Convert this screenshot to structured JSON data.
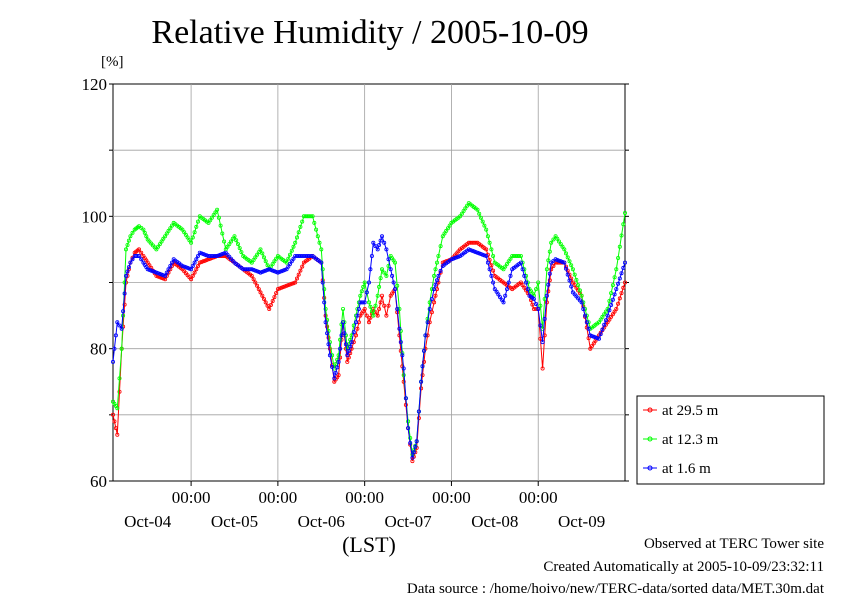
{
  "page": {
    "title": "Relative Humidity / 2005-10-09",
    "unit_label": "[%]",
    "footer": {
      "line1": "Observed at TERC Tower site",
      "line2": "Created Automatically at 2005-10-09/23:32:11",
      "line3": "Data source : /home/hoivo/new/TERC-data/sorted  data/MET.30m.dat"
    }
  },
  "chart_data": {
    "type": "line",
    "title": "Relative Humidity / 2005-10-09",
    "ylabel": "[%]",
    "xlabel": "(LST)",
    "ylim": [
      60,
      120
    ],
    "yticks": [
      60,
      80,
      100,
      120
    ],
    "xlim": [
      -0.9,
      5.0
    ],
    "time_tick_label": "00:00",
    "day_labels": [
      "Oct-04",
      "Oct-05",
      "Oct-06",
      "Oct-07",
      "Oct-08",
      "Oct-09"
    ],
    "grid": true,
    "legend": "right",
    "x": [
      -0.9,
      -0.85,
      -0.8,
      -0.75,
      -0.7,
      -0.65,
      -0.6,
      -0.55,
      -0.5,
      -0.4,
      -0.3,
      -0.2,
      -0.1,
      0.0,
      0.1,
      0.2,
      0.3,
      0.4,
      0.5,
      0.6,
      0.7,
      0.8,
      0.9,
      1.0,
      1.1,
      1.2,
      1.3,
      1.4,
      1.5,
      1.55,
      1.6,
      1.65,
      1.7,
      1.75,
      1.8,
      1.85,
      1.9,
      1.95,
      2.0,
      2.05,
      2.1,
      2.15,
      2.2,
      2.25,
      2.3,
      2.35,
      2.4,
      2.45,
      2.5,
      2.55,
      2.6,
      2.65,
      2.7,
      2.75,
      2.8,
      2.85,
      2.9,
      3.0,
      3.1,
      3.2,
      3.3,
      3.4,
      3.5,
      3.6,
      3.7,
      3.8,
      3.9,
      3.95,
      4.0,
      4.05,
      4.1,
      4.15,
      4.2,
      4.3,
      4.4,
      4.5,
      4.6,
      4.7,
      4.8,
      4.9,
      5.0
    ],
    "series": [
      {
        "name": "at 29.5 m",
        "color": "#ff0000",
        "values": [
          70,
          67,
          80,
          90,
          93,
          94.5,
          95,
          94,
          93,
          91,
          90.5,
          93,
          92,
          90.5,
          93,
          93.5,
          94,
          94,
          93,
          92,
          91,
          88.5,
          86,
          89,
          89.5,
          90,
          93,
          94,
          93,
          85,
          80,
          75,
          76,
          84,
          78,
          80,
          82,
          85,
          86,
          84,
          86,
          85,
          88,
          85,
          88,
          89,
          82,
          75,
          68,
          63,
          65,
          74,
          80,
          84,
          87,
          90,
          93,
          93.5,
          95,
          96,
          96,
          95,
          91,
          90,
          89,
          90,
          88,
          86,
          86,
          77,
          87,
          92,
          93,
          93,
          90,
          88,
          80,
          82,
          84,
          86,
          90
        ]
      },
      {
        "name": "at 12.3 m",
        "color": "#00ff00",
        "values": [
          72,
          71,
          80,
          95,
          97,
          98,
          98.5,
          98,
          96.5,
          95,
          97,
          99,
          98,
          96,
          100,
          99,
          101,
          95,
          97,
          94,
          93,
          95,
          92,
          94,
          93,
          96,
          100,
          100,
          95,
          86,
          81,
          77,
          79,
          86,
          80,
          82,
          85,
          88,
          90,
          87,
          85,
          88,
          92,
          91,
          94,
          93,
          86,
          76,
          69,
          64,
          66,
          75,
          82,
          87,
          91,
          94,
          97,
          99,
          100,
          102,
          101,
          98,
          93,
          92,
          94,
          94,
          89,
          88,
          90,
          83,
          92,
          96,
          97,
          95,
          92,
          88,
          83,
          84,
          86,
          92,
          100.5
        ]
      },
      {
        "name": "at 1.6 m",
        "color": "#0000ff",
        "values": [
          78,
          84,
          83,
          91,
          93,
          94,
          94,
          93,
          92,
          91.5,
          91,
          93.5,
          92.5,
          92,
          94.5,
          94,
          94,
          94.5,
          93,
          92,
          92,
          91.5,
          92,
          91.5,
          92,
          94,
          94,
          94,
          93,
          84,
          79,
          75.5,
          78,
          84,
          79,
          81,
          84,
          87,
          87,
          90,
          96,
          95,
          97,
          95,
          92,
          89,
          83,
          77,
          68,
          63.5,
          66,
          75,
          82,
          86,
          89,
          91,
          92.5,
          93.5,
          94,
          95,
          94.5,
          94,
          89,
          87,
          92,
          93,
          88,
          87.5,
          86,
          81,
          88,
          93,
          93.5,
          93,
          88.5,
          87,
          82,
          81.5,
          85,
          89,
          93
        ]
      }
    ]
  }
}
